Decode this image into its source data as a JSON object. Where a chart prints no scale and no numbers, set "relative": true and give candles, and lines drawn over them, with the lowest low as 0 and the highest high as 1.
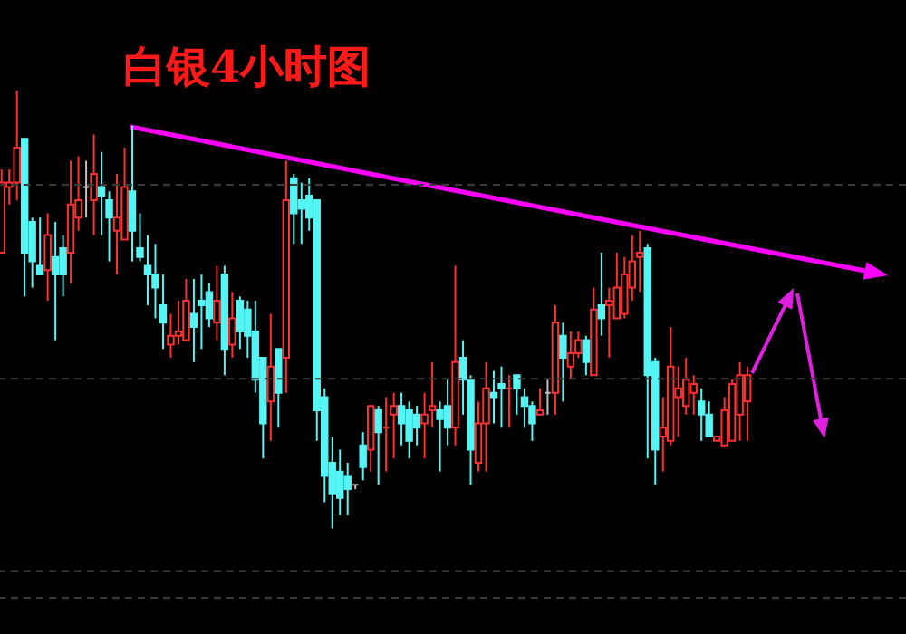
{
  "chart_data": {
    "type": "candlestick",
    "title": "白银4小时图",
    "relative": true,
    "categories": [
      null,
      null,
      null,
      null,
      null,
      null,
      null,
      null,
      null,
      null,
      null,
      null,
      null,
      null,
      null,
      null,
      null,
      null,
      null,
      null,
      null,
      null,
      null,
      null,
      null,
      null,
      null,
      null,
      null,
      null,
      null,
      null,
      null,
      null,
      null,
      null,
      null,
      null,
      null,
      null,
      null,
      null,
      null,
      null,
      null,
      null,
      null,
      null,
      null,
      null,
      null,
      null,
      null,
      null,
      null,
      null,
      null,
      null,
      null,
      null,
      null,
      null,
      null,
      null,
      null,
      null,
      null,
      null,
      null,
      null,
      null,
      null,
      null,
      null,
      null,
      null,
      null,
      null,
      null,
      null,
      null,
      null,
      null,
      null,
      null,
      null,
      null,
      null,
      null,
      null,
      null,
      null,
      null,
      null,
      null,
      null,
      null,
      null
    ],
    "ohlc": [
      [
        0.63,
        0.82,
        0.63,
        0.79
      ],
      [
        0.78,
        0.82,
        0.74,
        0.79
      ],
      [
        0.79,
        1.0,
        0.75,
        0.87
      ],
      [
        0.89,
        0.89,
        0.53,
        0.63
      ],
      [
        0.7,
        0.71,
        0.55,
        0.61
      ],
      [
        0.6,
        0.71,
        0.58,
        0.58
      ],
      [
        0.59,
        0.72,
        0.52,
        0.67
      ],
      [
        0.62,
        0.7,
        0.43,
        0.58
      ],
      [
        0.64,
        0.67,
        0.53,
        0.58
      ],
      [
        0.63,
        0.84,
        0.56,
        0.74
      ],
      [
        0.71,
        0.85,
        0.68,
        0.75
      ],
      [
        0.78,
        0.84,
        0.71,
        0.78
      ],
      [
        0.75,
        0.9,
        0.67,
        0.81
      ],
      [
        0.78,
        0.86,
        0.67,
        0.76
      ],
      [
        0.75,
        0.77,
        0.61,
        0.71
      ],
      [
        0.68,
        0.81,
        0.58,
        0.71
      ],
      [
        0.66,
        0.87,
        0.66,
        0.78
      ],
      [
        0.77,
        0.92,
        0.61,
        0.68
      ],
      [
        0.64,
        0.72,
        0.61,
        0.62
      ],
      [
        0.6,
        0.67,
        0.51,
        0.58
      ],
      [
        0.58,
        0.65,
        0.48,
        0.55
      ],
      [
        0.51,
        0.58,
        0.41,
        0.47
      ],
      [
        0.42,
        0.49,
        0.39,
        0.44
      ],
      [
        0.44,
        0.52,
        0.42,
        0.45
      ],
      [
        0.43,
        0.57,
        0.43,
        0.52
      ],
      [
        0.49,
        0.57,
        0.38,
        0.46
      ],
      [
        0.52,
        0.58,
        0.41,
        0.51
      ],
      [
        0.54,
        0.56,
        0.46,
        0.48
      ],
      [
        0.47,
        0.6,
        0.43,
        0.52
      ],
      [
        0.58,
        0.6,
        0.35,
        0.41
      ],
      [
        0.42,
        0.54,
        0.39,
        0.48
      ],
      [
        0.52,
        0.53,
        0.41,
        0.45
      ],
      [
        0.5,
        0.52,
        0.39,
        0.44
      ],
      [
        0.45,
        0.52,
        0.31,
        0.34
      ],
      [
        0.39,
        0.39,
        0.16,
        0.24
      ],
      [
        0.29,
        0.49,
        0.2,
        0.37
      ],
      [
        0.41,
        0.41,
        0.23,
        0.31
      ],
      [
        0.39,
        0.84,
        0.31,
        0.75
      ],
      [
        0.8,
        0.81,
        0.65,
        0.72
      ],
      [
        0.75,
        0.79,
        0.65,
        0.73
      ],
      [
        0.76,
        0.8,
        0.68,
        0.71
      ],
      [
        0.75,
        0.75,
        0.2,
        0.27
      ],
      [
        0.3,
        0.32,
        0.06,
        0.12
      ],
      [
        0.15,
        0.21,
        0.0,
        0.08
      ],
      [
        0.13,
        0.18,
        0.03,
        0.07
      ],
      [
        0.12,
        0.15,
        0.03,
        0.09
      ],
      [
        0.1,
        0.1,
        0.09,
        0.1
      ],
      [
        0.19,
        0.22,
        0.11,
        0.14
      ],
      [
        0.18,
        0.28,
        0.13,
        0.28
      ],
      [
        0.27,
        0.28,
        0.1,
        0.22
      ],
      [
        0.23,
        0.3,
        0.13,
        0.23
      ],
      [
        0.26,
        0.31,
        0.16,
        0.28
      ],
      [
        0.28,
        0.31,
        0.19,
        0.24
      ],
      [
        0.27,
        0.29,
        0.16,
        0.2
      ],
      [
        0.26,
        0.28,
        0.19,
        0.23
      ],
      [
        0.24,
        0.31,
        0.16,
        0.26
      ],
      [
        0.27,
        0.38,
        0.23,
        0.28
      ],
      [
        0.27,
        0.29,
        0.13,
        0.25
      ],
      [
        0.28,
        0.34,
        0.19,
        0.23
      ],
      [
        0.23,
        0.6,
        0.19,
        0.38
      ],
      [
        0.39,
        0.43,
        0.26,
        0.34
      ],
      [
        0.34,
        0.35,
        0.1,
        0.18
      ],
      [
        0.15,
        0.29,
        0.13,
        0.24
      ],
      [
        0.24,
        0.38,
        0.13,
        0.32
      ],
      [
        0.31,
        0.36,
        0.24,
        0.3
      ],
      [
        0.33,
        0.37,
        0.23,
        0.32
      ],
      [
        0.32,
        0.35,
        0.23,
        0.32
      ],
      [
        0.35,
        0.35,
        0.26,
        0.32
      ],
      [
        0.3,
        0.32,
        0.23,
        0.28
      ],
      [
        0.28,
        0.29,
        0.2,
        0.24
      ],
      [
        0.26,
        0.32,
        0.26,
        0.27
      ],
      [
        0.31,
        0.34,
        0.26,
        0.31
      ],
      [
        0.31,
        0.51,
        0.26,
        0.47
      ],
      [
        0.44,
        0.47,
        0.29,
        0.39
      ],
      [
        0.37,
        0.45,
        0.34,
        0.4
      ],
      [
        0.4,
        0.45,
        0.39,
        0.43
      ],
      [
        0.43,
        0.44,
        0.35,
        0.38
      ],
      [
        0.35,
        0.55,
        0.35,
        0.5
      ],
      [
        0.51,
        0.63,
        0.44,
        0.48
      ],
      [
        0.51,
        0.55,
        0.39,
        0.52
      ],
      [
        0.48,
        0.63,
        0.48,
        0.55
      ],
      [
        0.49,
        0.62,
        0.48,
        0.58
      ],
      [
        0.55,
        0.67,
        0.52,
        0.61
      ],
      [
        0.62,
        0.68,
        0.54,
        0.63
      ],
      [
        0.64,
        0.65,
        0.16,
        0.35
      ],
      [
        0.38,
        0.39,
        0.1,
        0.18
      ],
      [
        0.21,
        0.3,
        0.13,
        0.23
      ],
      [
        0.2,
        0.46,
        0.19,
        0.37
      ],
      [
        0.3,
        0.37,
        0.21,
        0.32
      ],
      [
        0.28,
        0.39,
        0.26,
        0.34
      ],
      [
        0.31,
        0.35,
        0.26,
        0.33
      ],
      [
        0.29,
        0.32,
        0.2,
        0.26
      ],
      [
        0.26,
        0.29,
        0.21,
        0.21
      ],
      [
        0.2,
        0.21,
        0.2,
        0.21
      ],
      [
        0.19,
        0.3,
        0.19,
        0.27
      ],
      [
        0.2,
        0.34,
        0.2,
        0.33
      ],
      [
        0.26,
        0.38,
        0.2,
        0.35
      ],
      [
        0.29,
        0.37,
        0.2,
        0.35
      ]
    ],
    "colors": [
      "#ff3030",
      "#ff3030",
      "#ff3030",
      "#55f5f5",
      "#55f5f5",
      "#55f5f5",
      "#ff3030",
      "#55f5f5",
      "#55f5f5",
      "#ff3030",
      "#ff3030",
      "#c0c0c0",
      "#ff3030",
      "#55f5f5",
      "#55f5f5",
      "#ff3030",
      "#ff3030",
      "#55f5f5",
      "#55f5f5",
      "#55f5f5",
      "#55f5f5",
      "#55f5f5",
      "#ff3030",
      "#ff3030",
      "#ff3030",
      "#55f5f5",
      "#55f5f5",
      "#55f5f5",
      "#ff3030",
      "#55f5f5",
      "#ff3030",
      "#55f5f5",
      "#55f5f5",
      "#55f5f5",
      "#55f5f5",
      "#ff3030",
      "#55f5f5",
      "#ff3030",
      "#55f5f5",
      "#55f5f5",
      "#55f5f5",
      "#55f5f5",
      "#55f5f5",
      "#55f5f5",
      "#55f5f5",
      "#55f5f5",
      "#c0c0c0",
      "#55f5f5",
      "#ff3030",
      "#55f5f5",
      "#ff3030",
      "#ff3030",
      "#55f5f5",
      "#55f5f5",
      "#55f5f5",
      "#ff3030",
      "#ff3030",
      "#55f5f5",
      "#55f5f5",
      "#ff3030",
      "#55f5f5",
      "#55f5f5",
      "#ff3030",
      "#ff3030",
      "#55f5f5",
      "#55f5f5",
      "#ff3030",
      "#55f5f5",
      "#55f5f5",
      "#55f5f5",
      "#ff3030",
      "#c0c0c0",
      "#ff3030",
      "#55f5f5",
      "#ff3030",
      "#ff3030",
      "#55f5f5",
      "#ff3030",
      "#55f5f5",
      "#ff3030",
      "#ff3030",
      "#ff3030",
      "#ff3030",
      "#ff3030",
      "#55f5f5",
      "#55f5f5",
      "#ff3030",
      "#ff3030",
      "#ff3030",
      "#ff3030",
      "#ff3030",
      "#55f5f5",
      "#55f5f5",
      "#ff3030",
      "#ff3030",
      "#ff3030",
      "#ff3030",
      "#ff3030"
    ],
    "ref_lines": [
      {
        "axis": "y",
        "value": 0.785,
        "color": "#3a3a3a",
        "line_style": "dashed"
      },
      {
        "axis": "y",
        "value": 0.342,
        "color": "#3a3a3a",
        "line_style": "dashed"
      },
      {
        "axis": "y",
        "value": -0.097,
        "color": "#3a3a3a",
        "line_style": "dashed"
      },
      {
        "axis": "y",
        "value": -0.158,
        "color": "#3a3a3a",
        "line_style": "dashed"
      }
    ]
  }
}
